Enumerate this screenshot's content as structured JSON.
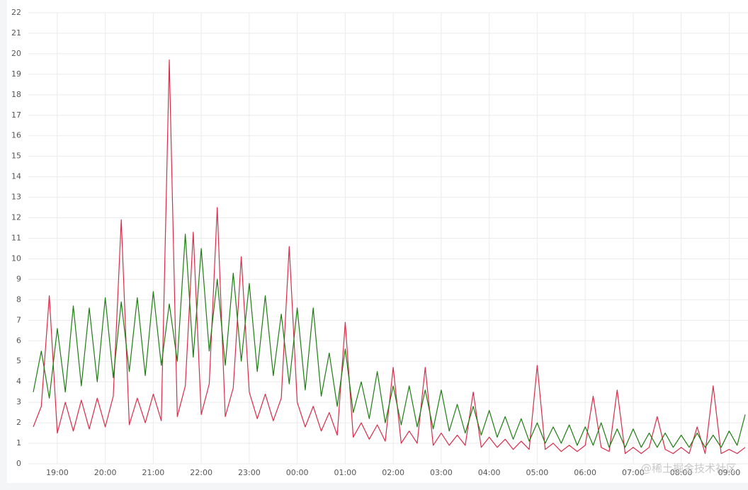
{
  "chart_data": {
    "type": "line",
    "x": [
      "18:30",
      "18:40",
      "18:50",
      "19:00",
      "19:10",
      "19:20",
      "19:30",
      "19:40",
      "19:50",
      "20:00",
      "20:10",
      "20:20",
      "20:30",
      "20:40",
      "20:50",
      "21:00",
      "21:10",
      "21:20",
      "21:30",
      "21:40",
      "21:50",
      "22:00",
      "22:10",
      "22:20",
      "22:30",
      "22:40",
      "22:50",
      "23:00",
      "23:10",
      "23:20",
      "23:30",
      "23:40",
      "23:50",
      "00:00",
      "00:10",
      "00:20",
      "00:30",
      "00:40",
      "00:50",
      "01:00",
      "01:10",
      "01:20",
      "01:30",
      "01:40",
      "01:50",
      "02:00",
      "02:10",
      "02:20",
      "02:30",
      "02:40",
      "02:50",
      "03:00",
      "03:10",
      "03:20",
      "03:30",
      "03:40",
      "03:50",
      "04:00",
      "04:10",
      "04:20",
      "04:30",
      "04:40",
      "04:50",
      "05:00",
      "05:10",
      "05:20",
      "05:30",
      "05:40",
      "05:50",
      "06:00",
      "06:10",
      "06:20",
      "06:30",
      "06:40",
      "06:50",
      "07:00",
      "07:10",
      "07:20",
      "07:30",
      "07:40",
      "07:50",
      "08:00",
      "08:10",
      "08:20",
      "08:30",
      "08:40",
      "08:50",
      "09:00",
      "09:10",
      "09:20"
    ],
    "series": [
      {
        "color": "#d82c4a",
        "values": [
          1.8,
          2.8,
          8.2,
          1.5,
          3.0,
          1.6,
          3.1,
          1.7,
          3.2,
          1.8,
          3.3,
          11.9,
          1.9,
          3.2,
          2.0,
          3.4,
          2.1,
          19.7,
          2.3,
          3.8,
          11.3,
          2.4,
          3.9,
          12.5,
          2.3,
          3.7,
          10.1,
          3.5,
          2.2,
          3.4,
          2.1,
          3.2,
          10.6,
          3.0,
          1.8,
          2.8,
          1.6,
          2.5,
          1.4,
          6.9,
          1.3,
          2.0,
          1.2,
          1.9,
          1.1,
          4.7,
          1.0,
          1.6,
          1.0,
          4.7,
          0.9,
          1.5,
          0.9,
          1.4,
          0.9,
          3.5,
          0.8,
          1.3,
          0.8,
          1.2,
          0.7,
          1.1,
          0.7,
          4.8,
          0.7,
          1.0,
          0.6,
          0.9,
          0.6,
          0.9,
          3.3,
          0.8,
          0.6,
          3.6,
          0.5,
          0.8,
          0.5,
          0.8,
          2.3,
          0.7,
          0.5,
          0.8,
          0.5,
          1.8,
          0.5,
          3.8,
          0.5,
          0.7,
          0.5,
          0.8
        ]
      },
      {
        "color": "#1e7d12",
        "values": [
          3.5,
          5.5,
          3.2,
          6.6,
          3.5,
          7.7,
          3.8,
          7.6,
          4.0,
          8.1,
          4.2,
          7.9,
          4.5,
          8.1,
          4.3,
          8.4,
          4.8,
          7.8,
          5.0,
          11.2,
          5.2,
          10.5,
          5.5,
          9.0,
          4.8,
          9.3,
          5.0,
          8.8,
          4.5,
          8.2,
          4.3,
          7.3,
          3.9,
          7.6,
          3.6,
          7.6,
          3.3,
          5.4,
          2.8,
          5.6,
          2.5,
          4.0,
          2.2,
          4.5,
          2.0,
          3.8,
          1.9,
          3.8,
          1.8,
          3.6,
          1.7,
          3.6,
          1.6,
          2.9,
          1.5,
          2.8,
          1.4,
          2.6,
          1.3,
          2.3,
          1.2,
          2.2,
          1.1,
          2.0,
          1.0,
          1.8,
          1.0,
          1.9,
          0.9,
          1.8,
          0.9,
          2.0,
          0.8,
          1.7,
          0.8,
          1.7,
          0.8,
          1.5,
          0.8,
          1.5,
          0.8,
          1.4,
          0.8,
          1.5,
          0.8,
          1.4,
          0.8,
          1.6,
          0.9,
          2.4
        ]
      }
    ],
    "ylim": [
      0,
      22
    ],
    "yticks": [
      0,
      1,
      2,
      3,
      4,
      5,
      6,
      7,
      8,
      9,
      10,
      11,
      12,
      13,
      14,
      15,
      16,
      17,
      18,
      19,
      20,
      21,
      22
    ],
    "xticks": [
      "19:00",
      "20:00",
      "21:00",
      "22:00",
      "23:00",
      "00:00",
      "01:00",
      "02:00",
      "03:00",
      "04:00",
      "05:00",
      "06:00",
      "07:00",
      "08:00",
      "09:00"
    ],
    "grid": true,
    "watermark": "@稀土掘金技术社区"
  }
}
